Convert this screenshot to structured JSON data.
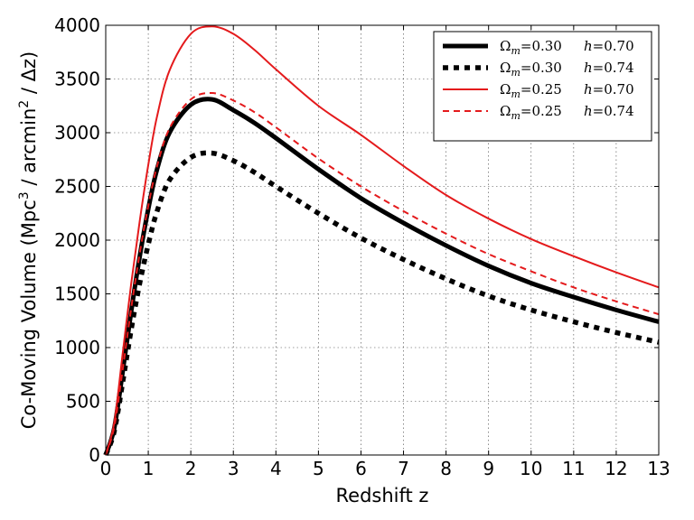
{
  "chart_data": {
    "type": "line",
    "xlabel": "Redshift  z",
    "ylabel_parts": {
      "prefix": "Co-Moving Volume  (Mpc",
      "exp1": "3",
      "middle": " / arcmin",
      "exp2": "2",
      "suffix": " / Δz)"
    },
    "xlim": [
      0,
      13
    ],
    "ylim": [
      0,
      4000
    ],
    "x_ticks": [
      0,
      1,
      2,
      3,
      4,
      5,
      6,
      7,
      8,
      9,
      10,
      11,
      12,
      13
    ],
    "y_ticks": [
      0,
      500,
      1000,
      1500,
      2000,
      2500,
      3000,
      3500,
      4000
    ],
    "grid": true,
    "legend_position": "top-right",
    "series": [
      {
        "name": "Ωm=0.30 h=0.70",
        "omega_label": "Ω",
        "omega_sub": "m",
        "omega_value": "=0.30",
        "h_label": "h",
        "h_value": "=0.70",
        "color": "#000000",
        "style": "solid-thick",
        "x": [
          0,
          0.2,
          0.4,
          0.6,
          0.8,
          1.0,
          1.2,
          1.5,
          2.0,
          2.5,
          3.0,
          3.5,
          4.0,
          5.0,
          6.0,
          7.0,
          8.0,
          9.0,
          10.0,
          11.0,
          12.0,
          13.0
        ],
        "y": [
          0,
          250,
          780,
          1340,
          1850,
          2290,
          2650,
          3000,
          3260,
          3310,
          3210,
          3090,
          2950,
          2660,
          2390,
          2160,
          1950,
          1760,
          1600,
          1470,
          1350,
          1240
        ]
      },
      {
        "name": "Ωm=0.30 h=0.74",
        "omega_label": "Ω",
        "omega_sub": "m",
        "omega_value": "=0.30",
        "h_label": "h",
        "h_value": "=0.74",
        "color": "#000000",
        "style": "dotted-thick",
        "x": [
          0,
          0.2,
          0.4,
          0.6,
          0.8,
          1.0,
          1.2,
          1.5,
          2.0,
          2.5,
          3.0,
          3.5,
          4.0,
          5.0,
          6.0,
          7.0,
          8.0,
          9.0,
          10.0,
          11.0,
          12.0,
          13.0
        ],
        "y": [
          0,
          220,
          680,
          1170,
          1600,
          1960,
          2260,
          2560,
          2770,
          2810,
          2740,
          2630,
          2500,
          2250,
          2020,
          1820,
          1640,
          1480,
          1350,
          1240,
          1140,
          1050
        ]
      },
      {
        "name": "Ωm=0.25 h=0.70",
        "omega_label": "Ω",
        "omega_sub": "m",
        "omega_value": "=0.25",
        "h_label": "h",
        "h_value": "=0.70",
        "color": "#e41a1c",
        "style": "solid-thin",
        "x": [
          0,
          0.2,
          0.4,
          0.6,
          0.8,
          1.0,
          1.2,
          1.5,
          2.0,
          2.5,
          3.0,
          3.5,
          4.0,
          5.0,
          6.0,
          7.0,
          8.0,
          9.0,
          10.0,
          11.0,
          12.0,
          13.0
        ],
        "y": [
          0,
          300,
          950,
          1600,
          2180,
          2700,
          3140,
          3580,
          3920,
          3990,
          3920,
          3770,
          3590,
          3250,
          2980,
          2690,
          2420,
          2200,
          2010,
          1850,
          1700,
          1560
        ]
      },
      {
        "name": "Ωm=0.25 h=0.74",
        "omega_label": "Ω",
        "omega_sub": "m",
        "omega_value": "=0.25",
        "h_label": "h",
        "h_value": "=0.74",
        "color": "#e41a1c",
        "style": "dashed-thin",
        "x": [
          0,
          0.2,
          0.4,
          0.6,
          0.8,
          1.0,
          1.2,
          1.5,
          2.0,
          2.5,
          3.0,
          3.5,
          4.0,
          5.0,
          6.0,
          7.0,
          8.0,
          9.0,
          10.0,
          11.0,
          12.0,
          13.0
        ],
        "y": [
          0,
          260,
          800,
          1370,
          1880,
          2320,
          2680,
          3040,
          3310,
          3370,
          3300,
          3190,
          3050,
          2760,
          2500,
          2270,
          2060,
          1870,
          1710,
          1560,
          1430,
          1310
        ]
      }
    ]
  }
}
